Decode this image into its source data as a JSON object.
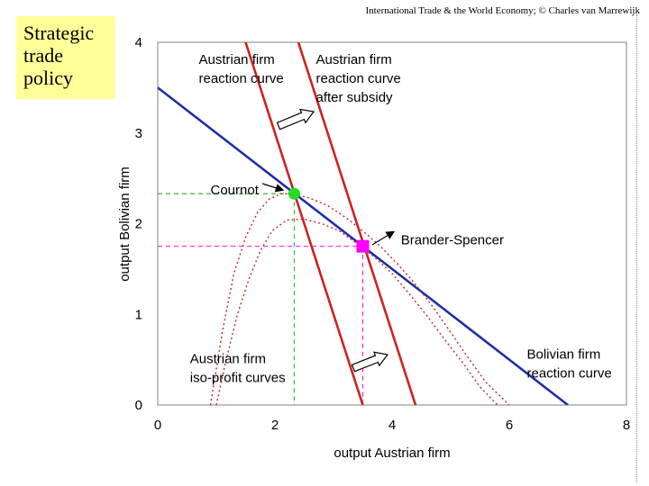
{
  "header": "International Trade & the World Economy;  © Charles van Marrewijk",
  "title_lines": [
    "Strategic",
    "trade",
    "policy"
  ],
  "chart_data": {
    "type": "line",
    "xlabel": "output Austrian firm",
    "ylabel": "output Bolivian firm",
    "xlim": [
      0,
      8
    ],
    "ylim": [
      0,
      4
    ],
    "xticks": [
      0,
      2,
      4,
      6,
      8
    ],
    "yticks": [
      0,
      1,
      2,
      3,
      4
    ],
    "grid": false,
    "series": [
      {
        "name": "Austrian firm reaction curve",
        "color": "#cc2222",
        "style": "solid",
        "x": [
          1.5,
          3.5
        ],
        "y": [
          4,
          0
        ]
      },
      {
        "name": "Austrian firm reaction curve after subsidy",
        "color": "#cc2222",
        "style": "solid",
        "x": [
          2.4,
          4.4
        ],
        "y": [
          4,
          0
        ]
      },
      {
        "name": "Bolivian firm reaction curve",
        "color": "#1f2fa8",
        "style": "solid",
        "x": [
          0,
          7
        ],
        "y": [
          3.5,
          0
        ]
      },
      {
        "name": "Austrian firm iso-profit curves",
        "color": "#cc2222",
        "style": "dotted",
        "x": [
          0.9,
          1.1,
          1.3,
          1.5,
          1.7,
          1.9,
          2.1,
          2.33,
          2.6,
          2.9,
          3.2,
          3.5,
          3.8,
          4.1,
          4.4,
          4.7,
          5.0,
          5.3,
          5.6,
          6.0
        ],
        "y": [
          0.0,
          0.8,
          1.45,
          1.85,
          2.12,
          2.27,
          2.33,
          2.33,
          2.28,
          2.2,
          2.07,
          1.92,
          1.75,
          1.55,
          1.33,
          1.08,
          0.8,
          0.52,
          0.25,
          0.0
        ]
      },
      {
        "name": "Austrian firm iso-profit curves",
        "color": "#cc2222",
        "style": "dotted",
        "x": [
          1.0,
          1.15,
          1.35,
          1.55,
          1.75,
          1.95,
          2.2,
          2.5,
          2.8,
          3.1,
          3.4,
          3.7,
          4.0,
          4.3,
          4.6,
          4.9,
          5.2,
          5.5,
          5.8
        ],
        "y": [
          0.0,
          0.45,
          0.98,
          1.38,
          1.7,
          1.92,
          2.04,
          2.05,
          2.0,
          1.92,
          1.78,
          1.63,
          1.45,
          1.22,
          0.98,
          0.72,
          0.47,
          0.2,
          0.0
        ]
      }
    ],
    "points": [
      {
        "name": "Cournot",
        "x": 2.33,
        "y": 2.33,
        "color": "#22dd22",
        "shape": "circle"
      },
      {
        "name": "Brander-Spencer",
        "x": 3.5,
        "y": 1.75,
        "color": "#ff00ff",
        "shape": "square"
      }
    ],
    "annotations": [
      {
        "lines": [
          "Austrian firm",
          "reaction curve"
        ],
        "x": 0.7,
        "y": 3.9
      },
      {
        "lines": [
          "Austrian firm",
          "reaction curve",
          "after subsidy"
        ],
        "x": 2.7,
        "y": 3.9
      },
      {
        "lines": [
          "Cournot"
        ],
        "x": 0.9,
        "y": 2.46
      },
      {
        "lines": [
          "Brander-Spencer"
        ],
        "x": 4.15,
        "y": 1.91
      },
      {
        "lines": [
          "Austrian firm",
          "iso-profit curves"
        ],
        "x": 0.55,
        "y": 0.6
      },
      {
        "lines": [
          "Bolivian firm",
          "reaction curve"
        ],
        "x": 6.3,
        "y": 0.65
      }
    ]
  }
}
